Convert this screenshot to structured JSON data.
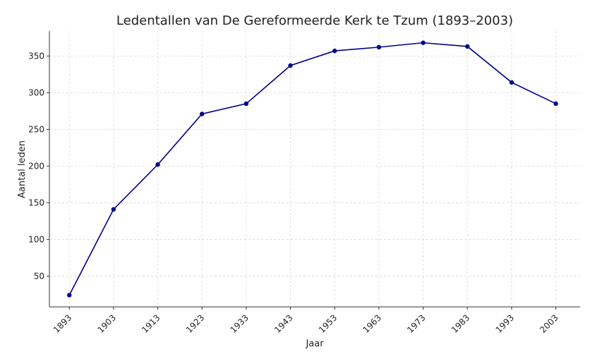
{
  "chart_data": {
    "type": "line",
    "title": "Ledentallen van De Gereformeerde Kerk te Tzum (1893–2003)",
    "xlabel": "Jaar",
    "ylabel": "Aantal leden",
    "x": [
      1893,
      1903,
      1913,
      1923,
      1933,
      1943,
      1953,
      1963,
      1973,
      1983,
      1993,
      2003
    ],
    "series": [
      {
        "values": [
          24,
          141,
          202,
          271,
          285,
          337,
          357,
          362,
          368,
          363,
          314,
          285
        ]
      }
    ],
    "yticks": [
      50,
      100,
      150,
      200,
      250,
      300,
      350
    ],
    "ylim": [
      8,
      384
    ],
    "xlim": [
      1888.5,
      2008.5
    ],
    "grid": true,
    "line_color": "#00008b"
  }
}
